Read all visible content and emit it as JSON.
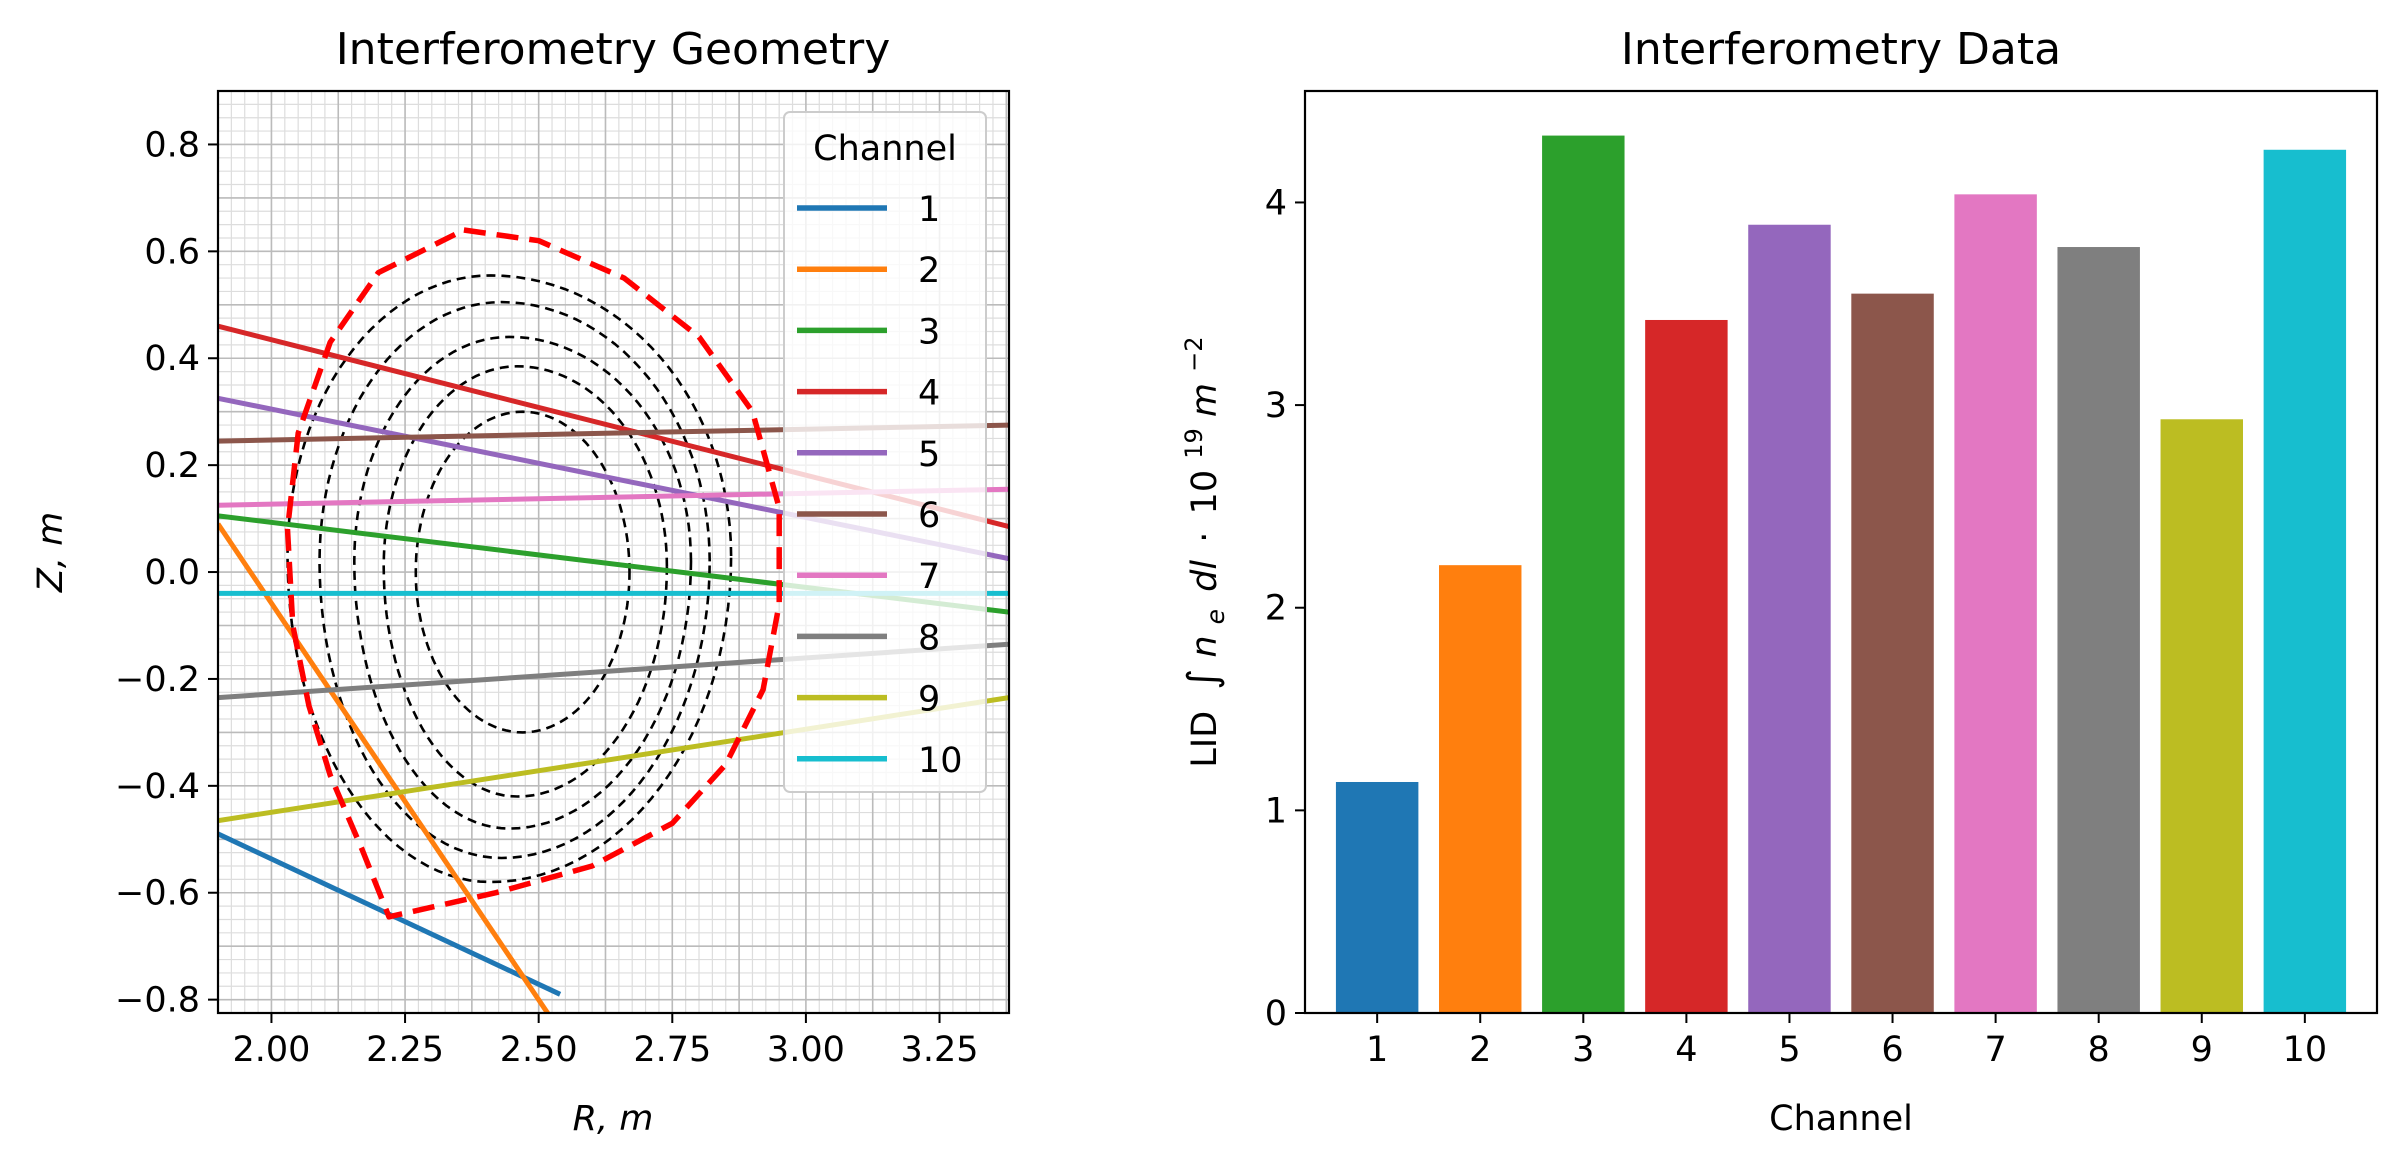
{
  "figure": {
    "left_title": "Interferometry Geometry",
    "right_title": "Interferometry Data"
  },
  "chart_data": [
    {
      "type": "line",
      "title": "Interferometry Geometry",
      "xlabel": "R, m",
      "ylabel": "Z, m",
      "xlim": [
        1.9,
        3.38
      ],
      "ylim": [
        -0.825,
        0.9
      ],
      "xticks": [
        "2.00",
        "2.25",
        "2.50",
        "2.75",
        "3.00",
        "3.25"
      ],
      "xtick_values": [
        2.0,
        2.25,
        2.5,
        2.75,
        3.0,
        3.25
      ],
      "yticks": [
        "−0.8",
        "−0.6",
        "−0.4",
        "−0.2",
        "0.0",
        "0.2",
        "0.4",
        "0.6",
        "0.8"
      ],
      "ytick_values": [
        -0.8,
        -0.6,
        -0.4,
        -0.2,
        0.0,
        0.2,
        0.4,
        0.6,
        0.8
      ],
      "grid": "major and minor",
      "legend": {
        "title": "Channel",
        "position": "top-right"
      },
      "boundary": {
        "color": "#ff0000",
        "style": "dashed",
        "points": [
          [
            2.36,
            0.64
          ],
          [
            2.5,
            0.62
          ],
          [
            2.66,
            0.55
          ],
          [
            2.8,
            0.44
          ],
          [
            2.9,
            0.3
          ],
          [
            2.95,
            0.12
          ],
          [
            2.95,
            -0.06
          ],
          [
            2.92,
            -0.22
          ],
          [
            2.85,
            -0.36
          ],
          [
            2.75,
            -0.47
          ],
          [
            2.6,
            -0.55
          ],
          [
            2.42,
            -0.6
          ],
          [
            2.22,
            -0.645
          ],
          [
            2.17,
            -0.52
          ],
          [
            2.11,
            -0.38
          ],
          [
            2.07,
            -0.25
          ],
          [
            2.04,
            -0.1
          ],
          [
            2.03,
            0.08
          ],
          [
            2.05,
            0.26
          ],
          [
            2.11,
            0.43
          ],
          [
            2.2,
            0.56
          ],
          [
            2.36,
            0.64
          ]
        ]
      },
      "flux_contours": [
        {
          "center": [
            2.47,
            0.0
          ],
          "r_right": 0.2,
          "r_left": 0.2,
          "top": 0.3,
          "bottom": -0.3
        },
        {
          "center": [
            2.46,
            0.01
          ],
          "r_right": 0.28,
          "r_left": 0.25,
          "top": 0.385,
          "bottom": -0.42
        },
        {
          "center": [
            2.445,
            0.02
          ],
          "r_right": 0.34,
          "r_left": 0.29,
          "top": 0.44,
          "bottom": -0.48
        },
        {
          "center": [
            2.43,
            0.02
          ],
          "r_right": 0.39,
          "r_left": 0.34,
          "top": 0.505,
          "bottom": -0.535
        },
        {
          "center": [
            2.41,
            0.03
          ],
          "r_right": 0.45,
          "r_left": 0.38,
          "top": 0.555,
          "bottom": -0.58
        }
      ],
      "series": [
        {
          "name": "1",
          "color": "#1f77b4",
          "points": [
            [
              1.9,
              -0.49
            ],
            [
              2.54,
              -0.79
            ]
          ]
        },
        {
          "name": "2",
          "color": "#ff7f0e",
          "points": [
            [
              1.9,
              0.09
            ],
            [
              2.52,
              -0.83
            ]
          ]
        },
        {
          "name": "3",
          "color": "#2ca02c",
          "points": [
            [
              1.9,
              0.105
            ],
            [
              3.38,
              -0.075
            ]
          ]
        },
        {
          "name": "4",
          "color": "#d62728",
          "points": [
            [
              1.9,
              0.46
            ],
            [
              3.38,
              0.085
            ]
          ]
        },
        {
          "name": "5",
          "color": "#9467bd",
          "points": [
            [
              1.9,
              0.325
            ],
            [
              3.38,
              0.025
            ]
          ]
        },
        {
          "name": "6",
          "color": "#8c564b",
          "points": [
            [
              1.9,
              0.245
            ],
            [
              3.38,
              0.275
            ]
          ]
        },
        {
          "name": "7",
          "color": "#e377c2",
          "points": [
            [
              1.9,
              0.125
            ],
            [
              3.38,
              0.155
            ]
          ]
        },
        {
          "name": "8",
          "color": "#7f7f7f",
          "points": [
            [
              1.9,
              -0.235
            ],
            [
              3.38,
              -0.135
            ]
          ]
        },
        {
          "name": "9",
          "color": "#bcbd22",
          "points": [
            [
              1.9,
              -0.465
            ],
            [
              3.38,
              -0.235
            ]
          ]
        },
        {
          "name": "10",
          "color": "#17becf",
          "points": [
            [
              1.9,
              -0.04
            ],
            [
              3.38,
              -0.04
            ]
          ]
        }
      ]
    },
    {
      "type": "bar",
      "title": "Interferometry Data",
      "xlabel": "Channel",
      "ylabel": "LID",
      "ylim": [
        0,
        4.55
      ],
      "yticks": [
        "0",
        "1",
        "2",
        "3",
        "4"
      ],
      "ytick_values": [
        0,
        1,
        2,
        3,
        4
      ],
      "categories": [
        "1",
        "2",
        "3",
        "4",
        "5",
        "6",
        "7",
        "8",
        "9",
        "10"
      ],
      "values": [
        1.14,
        2.21,
        4.33,
        3.42,
        3.89,
        3.55,
        4.04,
        3.78,
        2.93,
        4.26
      ],
      "colors": [
        "#1f77b4",
        "#ff7f0e",
        "#2ca02c",
        "#d62728",
        "#9467bd",
        "#8c564b",
        "#e377c2",
        "#7f7f7f",
        "#bcbd22",
        "#17becf"
      ]
    }
  ]
}
